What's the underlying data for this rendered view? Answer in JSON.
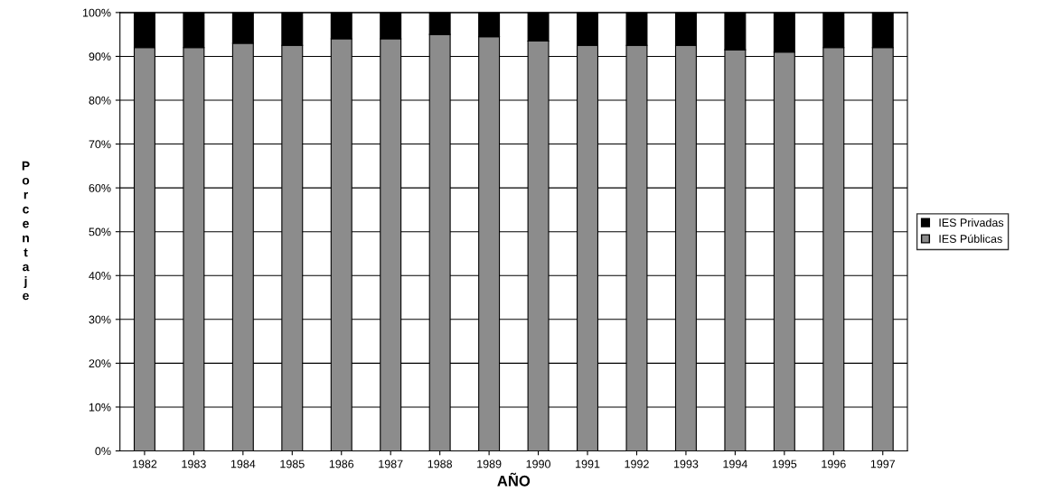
{
  "chart_data": {
    "type": "bar",
    "stacked": true,
    "xlabel": "AÑO",
    "ylabel": "P\no\nr\nc\ne\nn\nt\na\nj\ne",
    "categories": [
      "1982",
      "1983",
      "1984",
      "1985",
      "1986",
      "1987",
      "1988",
      "1989",
      "1990",
      "1991",
      "1992",
      "1993",
      "1994",
      "1995",
      "1996",
      "1997"
    ],
    "series": [
      {
        "name": "IES Públicas",
        "color": "#8c8c8c",
        "values": [
          92,
          92,
          93,
          92.5,
          94,
          94,
          95,
          94.5,
          93.5,
          92.5,
          92.5,
          92.5,
          91.5,
          91,
          92,
          92
        ]
      },
      {
        "name": "IES Privadas",
        "color": "#000000",
        "values": [
          8,
          8,
          7,
          7.5,
          6,
          6,
          5,
          5.5,
          6.5,
          7.5,
          7.5,
          7.5,
          8.5,
          9,
          8,
          8
        ]
      }
    ],
    "ylim": [
      0,
      100
    ],
    "yticks": [
      {
        "value": 0,
        "label": "0%"
      },
      {
        "value": 10,
        "label": "10%"
      },
      {
        "value": 20,
        "label": "20%"
      },
      {
        "value": 30,
        "label": "30%"
      },
      {
        "value": 40,
        "label": "40%"
      },
      {
        "value": 50,
        "label": "50%"
      },
      {
        "value": 60,
        "label": "60%"
      },
      {
        "value": 70,
        "label": "70%"
      },
      {
        "value": 80,
        "label": "80%"
      },
      {
        "value": 90,
        "label": "90%"
      },
      {
        "value": 100,
        "label": "100%"
      }
    ],
    "grid": "y",
    "legend": "right"
  }
}
